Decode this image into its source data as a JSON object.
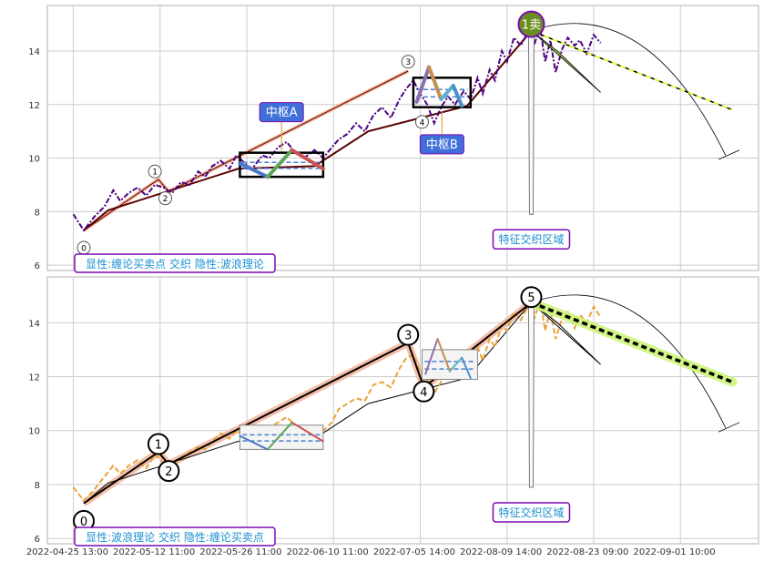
{
  "colors": {
    "grid": "#cccccc",
    "frame": "#b0b0b0",
    "price_top": "#4b0082",
    "price_bottom": "#e8a33a",
    "callout_fill": "#3f6fd8",
    "callout_edge": "#7a0ab0",
    "legend_text": "#1a8fd0",
    "sell_badge": "#6b8e23",
    "trend_line": "#5a0000",
    "trend_glow": "#f4b8a0",
    "forecast_top": "#9acd32",
    "forecast_bottom": "#cdf57a"
  },
  "chart_data": [
    {
      "panel": "top",
      "type": "line",
      "ylim": [
        5.8,
        15.7
      ],
      "yticks": [
        6,
        8,
        10,
        12,
        14
      ],
      "grid": true,
      "price_series": [
        [
          0,
          7.9
        ],
        [
          0.6,
          7.3
        ],
        [
          1.2,
          7.8
        ],
        [
          1.8,
          8.2
        ],
        [
          2.3,
          8.8
        ],
        [
          2.7,
          8.4
        ],
        [
          3.2,
          8.7
        ],
        [
          3.7,
          8.9
        ],
        [
          4.2,
          8.6
        ],
        [
          4.7,
          9.0
        ],
        [
          5.2,
          8.9
        ],
        [
          5.7,
          8.7
        ],
        [
          6.2,
          9.1
        ],
        [
          6.7,
          9.0
        ],
        [
          7.2,
          9.5
        ],
        [
          7.6,
          9.3
        ],
        [
          8.0,
          9.7
        ],
        [
          8.5,
          9.9
        ],
        [
          9.0,
          9.6
        ],
        [
          9.4,
          10.1
        ],
        [
          9.9,
          9.8
        ],
        [
          10.3,
          9.6
        ],
        [
          10.9,
          10.1
        ],
        [
          11.3,
          10.0
        ],
        [
          11.8,
          10.4
        ],
        [
          12.3,
          10.6
        ],
        [
          12.8,
          10.2
        ],
        [
          13.3,
          10.0
        ],
        [
          13.9,
          10.3
        ],
        [
          14.4,
          10.0
        ],
        [
          14.9,
          10.4
        ],
        [
          15.3,
          10.7
        ],
        [
          15.8,
          10.9
        ],
        [
          16.3,
          11.3
        ],
        [
          16.8,
          11.0
        ],
        [
          17.3,
          11.6
        ],
        [
          17.8,
          11.9
        ],
        [
          18.3,
          11.5
        ],
        [
          18.8,
          12.2
        ],
        [
          19.2,
          12.6
        ],
        [
          19.6,
          12.9
        ],
        [
          20.0,
          12.4
        ],
        [
          20.4,
          12.0
        ],
        [
          20.8,
          11.3
        ],
        [
          21.2,
          11.9
        ],
        [
          21.6,
          12.3
        ],
        [
          22.0,
          12.0
        ],
        [
          22.5,
          12.5
        ],
        [
          22.9,
          12.2
        ],
        [
          23.3,
          13.0
        ],
        [
          23.6,
          12.4
        ],
        [
          24.0,
          13.3
        ],
        [
          24.3,
          12.9
        ],
        [
          24.7,
          14.0
        ],
        [
          25.0,
          13.6
        ],
        [
          25.4,
          14.5
        ],
        [
          25.8,
          14.2
        ],
        [
          26.2,
          14.7
        ],
        [
          26.6,
          14.3
        ],
        [
          26.9,
          14.9
        ],
        [
          27.2,
          13.6
        ],
        [
          27.5,
          14.4
        ],
        [
          27.8,
          13.2
        ],
        [
          28.2,
          14.1
        ],
        [
          28.5,
          14.5
        ],
        [
          28.9,
          14.2
        ],
        [
          29.2,
          14.4
        ],
        [
          29.6,
          13.9
        ],
        [
          30.0,
          14.6
        ],
        [
          30.4,
          14.3
        ]
      ],
      "point_labels": [
        {
          "text": "0",
          "x": 0.6,
          "y": 6.65
        },
        {
          "text": "1",
          "x": 4.7,
          "y": 9.5
        },
        {
          "text": "2",
          "x": 5.3,
          "y": 8.5
        },
        {
          "text": "3",
          "x": 19.3,
          "y": 13.6
        },
        {
          "text": "4",
          "x": 20.1,
          "y": 11.35
        }
      ],
      "zones": [
        {
          "label": "中枢A",
          "x0": 9.6,
          "x1": 14.4,
          "y0": 9.3,
          "y1": 10.2
        },
        {
          "label": "中枢B",
          "x0": 19.6,
          "x1": 22.9,
          "y0": 11.9,
          "y1": 13.0
        }
      ],
      "sell_label": "1卖",
      "feature_label": "特征交织区域",
      "legend": "显性:缠论买卖点 交织 隐性:波浪理论"
    },
    {
      "panel": "bottom",
      "type": "line",
      "ylim": [
        5.8,
        15.7
      ],
      "yticks": [
        6,
        8,
        10,
        12,
        14
      ],
      "grid": true,
      "price_series": [
        [
          0,
          7.9
        ],
        [
          0.6,
          7.4
        ],
        [
          1.2,
          7.8
        ],
        [
          1.8,
          8.3
        ],
        [
          2.3,
          8.7
        ],
        [
          2.7,
          8.4
        ],
        [
          3.2,
          8.7
        ],
        [
          3.7,
          8.9
        ],
        [
          4.2,
          8.6
        ],
        [
          4.7,
          9.1
        ],
        [
          5.2,
          8.8
        ],
        [
          5.7,
          8.7
        ],
        [
          6.2,
          9.0
        ],
        [
          6.7,
          9.2
        ],
        [
          7.2,
          9.4
        ],
        [
          7.6,
          9.3
        ],
        [
          8.0,
          9.6
        ],
        [
          8.5,
          9.9
        ],
        [
          9.0,
          9.7
        ],
        [
          9.4,
          10.0
        ],
        [
          9.9,
          9.8
        ],
        [
          10.3,
          9.5
        ],
        [
          10.9,
          10.0
        ],
        [
          11.3,
          10.1
        ],
        [
          11.8,
          10.3
        ],
        [
          12.3,
          10.5
        ],
        [
          12.8,
          10.2
        ],
        [
          13.3,
          10.0
        ],
        [
          13.9,
          10.2
        ],
        [
          14.4,
          10.0
        ],
        [
          14.9,
          10.3
        ],
        [
          15.3,
          10.8
        ],
        [
          15.8,
          11.0
        ],
        [
          16.3,
          11.2
        ],
        [
          16.8,
          11.1
        ],
        [
          17.3,
          11.7
        ],
        [
          17.8,
          11.8
        ],
        [
          18.3,
          11.6
        ],
        [
          18.8,
          12.3
        ],
        [
          19.2,
          12.7
        ],
        [
          19.6,
          12.8
        ],
        [
          20.0,
          12.2
        ],
        [
          20.4,
          11.9
        ],
        [
          20.8,
          11.4
        ],
        [
          21.2,
          11.8
        ],
        [
          21.6,
          12.4
        ],
        [
          22.0,
          12.1
        ],
        [
          22.5,
          12.4
        ],
        [
          22.9,
          12.3
        ],
        [
          23.3,
          13.1
        ],
        [
          23.6,
          12.6
        ],
        [
          24.0,
          13.4
        ],
        [
          24.3,
          13.1
        ],
        [
          24.7,
          13.9
        ],
        [
          25.0,
          13.7
        ],
        [
          25.4,
          14.4
        ],
        [
          25.8,
          14.1
        ],
        [
          26.2,
          14.6
        ],
        [
          26.6,
          14.2
        ],
        [
          26.9,
          14.9
        ],
        [
          27.2,
          13.7
        ],
        [
          27.5,
          14.5
        ],
        [
          27.8,
          13.4
        ],
        [
          28.2,
          14.2
        ],
        [
          28.5,
          14.4
        ],
        [
          28.9,
          13.8
        ],
        [
          29.2,
          14.3
        ],
        [
          29.6,
          14.0
        ],
        [
          30.0,
          14.6
        ],
        [
          30.4,
          14.2
        ]
      ],
      "point_labels": [
        {
          "text": "0",
          "x": 0.6,
          "y": 6.65
        },
        {
          "text": "1",
          "x": 4.9,
          "y": 9.5
        },
        {
          "text": "2",
          "x": 5.5,
          "y": 8.5
        },
        {
          "text": "3",
          "x": 19.3,
          "y": 13.55
        },
        {
          "text": "4",
          "x": 20.2,
          "y": 11.45
        },
        {
          "text": "5",
          "x": 26.4,
          "y": 14.95
        }
      ],
      "zones": [
        {
          "label": "",
          "x0": 9.6,
          "x1": 14.4,
          "y0": 9.3,
          "y1": 10.2
        },
        {
          "label": "",
          "x0": 20.1,
          "x1": 23.3,
          "y0": 11.9,
          "y1": 13.0
        }
      ],
      "feature_label": "特征交织区域",
      "legend": "显性:波浪理论 交织 隐性:缠论买卖点"
    }
  ],
  "x_axis": {
    "tick_labels": [
      "2022-04-25 13:00",
      "2022-05-12 11:00",
      "2022-05-26 11:00",
      "2022-06-10 11:00",
      "2022-07-05 14:00",
      "2022-08-09 14:00",
      "2022-08-23 09:00",
      "2022-09-01 10:00"
    ]
  }
}
